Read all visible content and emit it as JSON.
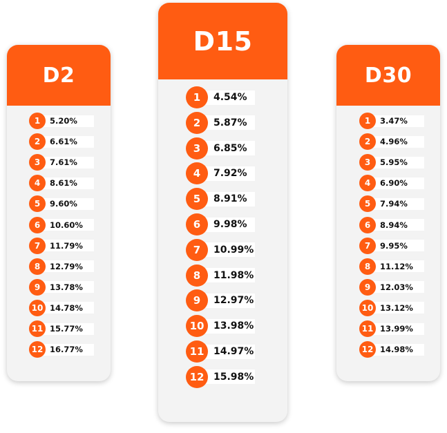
{
  "accent_color": "#ff5c12",
  "cards": [
    {
      "title": "D2",
      "rows": [
        {
          "rank": "1",
          "value": "5.20%"
        },
        {
          "rank": "2",
          "value": "6.61%"
        },
        {
          "rank": "3",
          "value": "7.61%"
        },
        {
          "rank": "4",
          "value": "8.61%"
        },
        {
          "rank": "5",
          "value": "9.60%"
        },
        {
          "rank": "6",
          "value": "10.60%"
        },
        {
          "rank": "7",
          "value": "11.79%"
        },
        {
          "rank": "8",
          "value": "12.79%"
        },
        {
          "rank": "9",
          "value": "13.78%"
        },
        {
          "rank": "10",
          "value": "14.78%"
        },
        {
          "rank": "11",
          "value": "15.77%"
        },
        {
          "rank": "12",
          "value": "16.77%"
        }
      ]
    },
    {
      "title": "D15",
      "rows": [
        {
          "rank": "1",
          "value": "4.54%"
        },
        {
          "rank": "2",
          "value": "5.87%"
        },
        {
          "rank": "3",
          "value": "6.85%"
        },
        {
          "rank": "4",
          "value": "7.92%"
        },
        {
          "rank": "5",
          "value": "8.91%"
        },
        {
          "rank": "6",
          "value": "9.98%"
        },
        {
          "rank": "7",
          "value": "10.99%"
        },
        {
          "rank": "8",
          "value": "11.98%"
        },
        {
          "rank": "9",
          "value": "12.97%"
        },
        {
          "rank": "10",
          "value": "13.98%"
        },
        {
          "rank": "11",
          "value": "14.97%"
        },
        {
          "rank": "12",
          "value": "15.98%"
        }
      ]
    },
    {
      "title": "D30",
      "rows": [
        {
          "rank": "1",
          "value": "3.47%"
        },
        {
          "rank": "2",
          "value": "4.96%"
        },
        {
          "rank": "3",
          "value": "5.95%"
        },
        {
          "rank": "4",
          "value": "6.90%"
        },
        {
          "rank": "5",
          "value": "7.94%"
        },
        {
          "rank": "6",
          "value": "8.94%"
        },
        {
          "rank": "7",
          "value": "9.95%"
        },
        {
          "rank": "8",
          "value": "11.12%"
        },
        {
          "rank": "9",
          "value": "12.03%"
        },
        {
          "rank": "10",
          "value": "13.12%"
        },
        {
          "rank": "11",
          "value": "13.99%"
        },
        {
          "rank": "12",
          "value": "14.98%"
        }
      ]
    }
  ]
}
